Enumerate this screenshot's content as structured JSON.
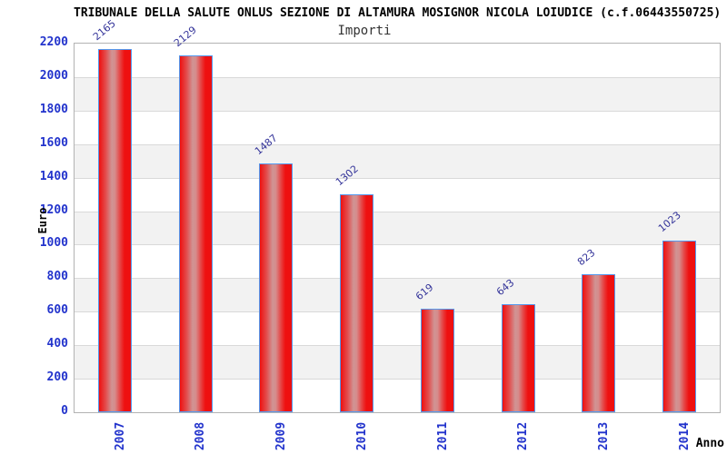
{
  "header": {
    "title": "TRIBUNALE DELLA SALUTE ONLUS SEZIONE DI ALTAMURA MOSIGNOR NICOLA LOIUDICE (c.f.06443550725)",
    "subtitle": "Importi"
  },
  "chart_data": {
    "type": "bar",
    "title": "TRIBUNALE DELLA SALUTE ONLUS SEZIONE DI ALTAMURA MOSIGNOR NICOLA LOIUDICE (c.f.06443550725)",
    "subtitle": "Importi",
    "categories": [
      "2007",
      "2008",
      "2009",
      "2010",
      "2011",
      "2012",
      "2013",
      "2014"
    ],
    "values": [
      2165,
      2129,
      1487,
      1302,
      619,
      643,
      823,
      1023
    ],
    "xlabel": "Anno",
    "ylabel": "Euro",
    "ylim": [
      0,
      2200
    ],
    "ytick_step": 200,
    "grid": true,
    "legend": "none",
    "colors": {
      "bar_fill": "#ee1010",
      "bar_fill_highlight": "#d09494",
      "bar_border": "#5599ee",
      "tick_label": "#2233cc",
      "value_label": "#333399",
      "band_alt": "#f2f2f2",
      "gridline": "#d9d9d9",
      "frame": "#b3b3b3",
      "title": "#000000",
      "subtitle": "#333333"
    }
  }
}
